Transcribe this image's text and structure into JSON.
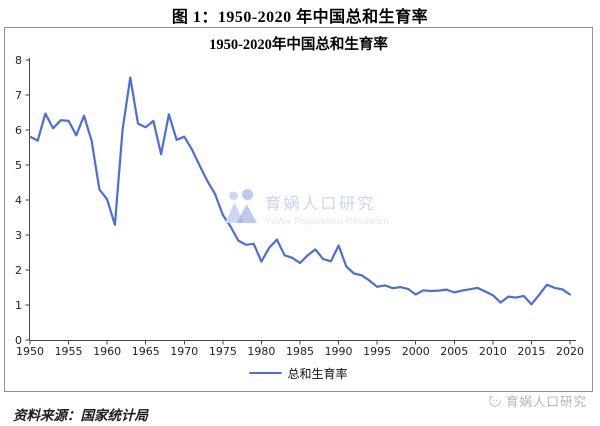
{
  "figure": {
    "title": "图 1：1950-2020 年中国总和生育率"
  },
  "chart": {
    "title": "1950-2020年中国总和生育率",
    "legend_label": "总和生育率"
  },
  "watermark": {
    "cn": "育娲人口研究",
    "en": "YuWa Population Research"
  },
  "footer": {
    "source": "资料来源：国家统计局",
    "brand": "育娲人口研究"
  },
  "colors": {
    "line": "#4a6edb",
    "axis": "#454545",
    "box_border": "#8f8f8f",
    "watermark_light": "#ccd8f4",
    "watermark_mid": "#bccaef",
    "watermark_overlap": "#a8bcec",
    "brand_gray": "#b5b5b5"
  },
  "chart_data": {
    "type": "line",
    "title": "1950-2020年中国总和生育率",
    "legend": [
      "总和生育率"
    ],
    "legend_position": "bottom",
    "grid": false,
    "xlabel": "",
    "ylabel": "",
    "ylim": [
      0,
      8
    ],
    "xlim": [
      1950,
      2020
    ],
    "y_ticks": [
      0,
      1,
      2,
      3,
      4,
      5,
      6,
      7,
      8
    ],
    "x_ticks": [
      1950,
      1955,
      1960,
      1965,
      1970,
      1975,
      1980,
      1985,
      1990,
      1995,
      2000,
      2005,
      2010,
      2015,
      2020
    ],
    "x": [
      1950,
      1951,
      1952,
      1953,
      1954,
      1955,
      1956,
      1957,
      1958,
      1959,
      1960,
      1961,
      1962,
      1963,
      1964,
      1965,
      1966,
      1967,
      1968,
      1969,
      1970,
      1971,
      1972,
      1973,
      1974,
      1975,
      1976,
      1977,
      1978,
      1979,
      1980,
      1981,
      1982,
      1983,
      1984,
      1985,
      1986,
      1987,
      1988,
      1989,
      1990,
      1991,
      1992,
      1993,
      1994,
      1995,
      1996,
      1997,
      1998,
      1999,
      2000,
      2001,
      2002,
      2003,
      2004,
      2005,
      2006,
      2007,
      2008,
      2009,
      2010,
      2011,
      2012,
      2013,
      2014,
      2015,
      2016,
      2017,
      2018,
      2019,
      2020
    ],
    "series": [
      {
        "name": "总和生育率",
        "values": [
          5.81,
          5.7,
          6.47,
          6.05,
          6.28,
          6.26,
          5.85,
          6.41,
          5.68,
          4.3,
          4.02,
          3.29,
          6.02,
          7.5,
          6.18,
          6.08,
          6.26,
          5.31,
          6.45,
          5.72,
          5.81,
          5.44,
          4.98,
          4.54,
          4.17,
          3.57,
          3.24,
          2.84,
          2.72,
          2.75,
          2.24,
          2.63,
          2.87,
          2.42,
          2.35,
          2.2,
          2.42,
          2.59,
          2.31,
          2.25,
          2.7,
          2.1,
          1.9,
          1.85,
          1.7,
          1.52,
          1.56,
          1.48,
          1.51,
          1.46,
          1.3,
          1.42,
          1.4,
          1.41,
          1.44,
          1.36,
          1.41,
          1.45,
          1.49,
          1.39,
          1.28,
          1.07,
          1.24,
          1.21,
          1.26,
          1.02,
          1.29,
          1.58,
          1.49,
          1.45,
          1.3
        ]
      }
    ]
  }
}
